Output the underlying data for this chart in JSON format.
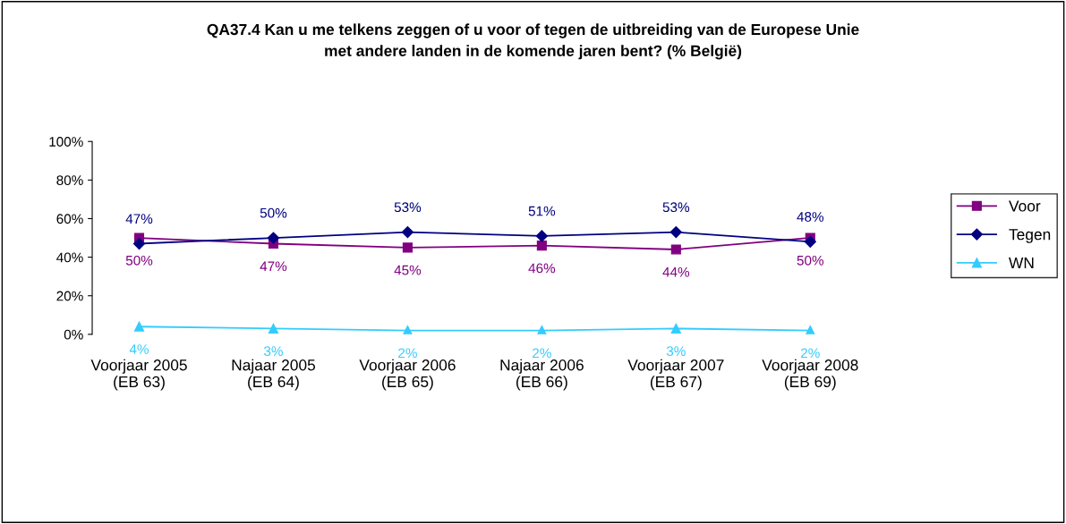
{
  "chart_data": {
    "type": "line",
    "title": "QA37.4 Kan u me telkens zeggen of u voor of tegen de uitbreiding van de Europese Unie\nmet andere landen in de komende jaren bent? (% België)",
    "categories": [
      "Voorjaar 2005\n(EB 63)",
      "Najaar 2005\n(EB 64)",
      "Voorjaar 2006\n(EB 65)",
      "Najaar 2006\n(EB 66)",
      "Voorjaar 2007\n(EB 67)",
      "Voorjaar 2008\n(EB 69)"
    ],
    "series": [
      {
        "name": "Voor",
        "color": "#800080",
        "marker": "square",
        "values": [
          50,
          47,
          45,
          46,
          44,
          50
        ],
        "value_labels": [
          "50%",
          "47%",
          "45%",
          "46%",
          "44%",
          "50%"
        ]
      },
      {
        "name": "Tegen",
        "color": "#000080",
        "marker": "diamond",
        "values": [
          47,
          50,
          53,
          51,
          53,
          48
        ],
        "value_labels": [
          "47%",
          "50%",
          "53%",
          "51%",
          "53%",
          "48%"
        ]
      },
      {
        "name": "WN",
        "color": "#33ccff",
        "marker": "triangle",
        "values": [
          4,
          3,
          2,
          2,
          3,
          2
        ],
        "value_labels": [
          "4%",
          "3%",
          "2%",
          "2%",
          "3%",
          "2%"
        ]
      }
    ],
    "ylim": [
      0,
      100
    ],
    "yticks": [
      {
        "value": 0,
        "label": "0%"
      },
      {
        "value": 20,
        "label": "20%"
      },
      {
        "value": 40,
        "label": "40%"
      },
      {
        "value": 60,
        "label": "60%"
      },
      {
        "value": 80,
        "label": "80%"
      },
      {
        "value": 100,
        "label": "100%"
      }
    ],
    "grid": false,
    "legend": "right",
    "line_style": "solid"
  }
}
